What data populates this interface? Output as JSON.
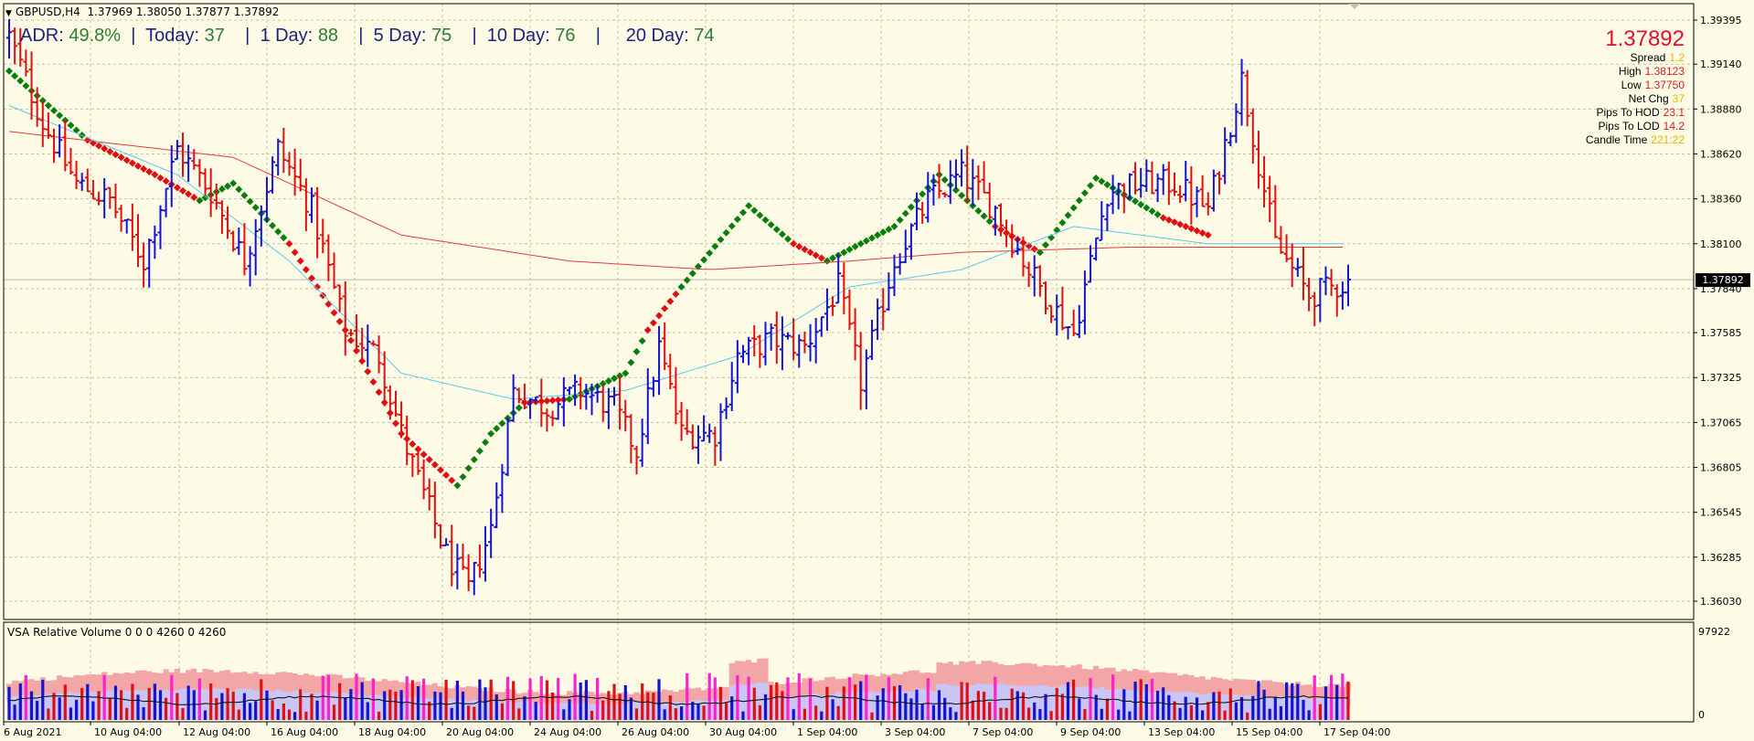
{
  "window": {
    "title_symbol": "GBPUSD,H4",
    "title_ohlc": "1.37969 1.38050 1.37877 1.37892",
    "collapse_icon": "triangle-down-icon"
  },
  "adr": {
    "adr_label": "ADR:",
    "adr_value": "49.8%",
    "today_label": "Today:",
    "today_value": "37",
    "day1_label": "1 Day:",
    "day1_value": "88",
    "day5_label": "5 Day:",
    "day5_value": "75",
    "day10_label": "10 Day:",
    "day10_value": "76",
    "day20_label": "20 Day:",
    "day20_value": "74"
  },
  "info_panel": {
    "price": "1.37892",
    "spread_label": "Spread",
    "spread_value": "1.2",
    "high_label": "High",
    "high_value": "1.38123",
    "low_label": "Low",
    "low_value": "1.37750",
    "netchg_label": "Net Chg",
    "netchg_value": "37",
    "pips_hod_label": "Pips To HOD",
    "pips_hod_value": "23.1",
    "pips_lod_label": "Pips To LOD",
    "pips_lod_value": "14.2",
    "candle_time_label": "Candle Time",
    "candle_time_value": "221:22"
  },
  "current_price_tag": "1.37892",
  "vsa_label": "VSA Relative Volume 0 0 0 4260 0 4260",
  "volume_scale": {
    "max": "97922",
    "min": "0"
  },
  "colors": {
    "background": "#fdfbe6",
    "bull": "#1414d0",
    "bear": "#e01010",
    "trend_up": "#0a7d0a",
    "trend_down": "#e01010",
    "ma_fast": "#5ec8ee",
    "ma_slow": "#e23c3c",
    "volume_band_outer": "#f3a6a6",
    "volume_band_inner": "#c9c6f5",
    "volume_climax": "#ff22cc"
  },
  "chart_data": {
    "type": "candlestick",
    "symbol": "GBPUSD",
    "timeframe": "H4",
    "y_ticks": [
      "1.39395",
      "1.39140",
      "1.38880",
      "1.38620",
      "1.38360",
      "1.38100",
      "1.37840",
      "1.37585",
      "1.37325",
      "1.37065",
      "1.36805",
      "1.36545",
      "1.36285",
      "1.36030"
    ],
    "ylim": [
      1.359,
      1.395
    ],
    "x_ticks": [
      "6 Aug 2021",
      "10 Aug 04:00",
      "12 Aug 04:00",
      "16 Aug 04:00",
      "18 Aug 04:00",
      "20 Aug 04:00",
      "24 Aug 04:00",
      "26 Aug 04:00",
      "30 Aug 04:00",
      "1 Sep 04:00",
      "3 Sep 04:00",
      "7 Sep 04:00",
      "9 Sep 04:00",
      "13 Sep 04:00",
      "15 Sep 04:00",
      "17 Sep 04:00"
    ],
    "bar_count": 240,
    "close_anchors": [
      [
        0,
        1.393
      ],
      [
        6,
        1.388
      ],
      [
        12,
        1.3845
      ],
      [
        18,
        1.3835
      ],
      [
        24,
        1.38
      ],
      [
        30,
        1.3865
      ],
      [
        36,
        1.384
      ],
      [
        42,
        1.38
      ],
      [
        48,
        1.3865
      ],
      [
        54,
        1.383
      ],
      [
        60,
        1.376
      ],
      [
        66,
        1.3745
      ],
      [
        70,
        1.37
      ],
      [
        74,
        1.3665
      ],
      [
        78,
        1.363
      ],
      [
        82,
        1.361
      ],
      [
        86,
        1.3645
      ],
      [
        90,
        1.3725
      ],
      [
        96,
        1.3715
      ],
      [
        102,
        1.3725
      ],
      [
        108,
        1.3715
      ],
      [
        112,
        1.369
      ],
      [
        116,
        1.375
      ],
      [
        120,
        1.37
      ],
      [
        126,
        1.37
      ],
      [
        130,
        1.3745
      ],
      [
        136,
        1.3755
      ],
      [
        142,
        1.375
      ],
      [
        148,
        1.3785
      ],
      [
        152,
        1.373
      ],
      [
        158,
        1.38
      ],
      [
        164,
        1.3835
      ],
      [
        170,
        1.385
      ],
      [
        176,
        1.383
      ],
      [
        182,
        1.3795
      ],
      [
        186,
        1.3775
      ],
      [
        190,
        1.3758
      ],
      [
        196,
        1.384
      ],
      [
        202,
        1.3845
      ],
      [
        208,
        1.3845
      ],
      [
        214,
        1.383
      ],
      [
        220,
        1.3905
      ],
      [
        226,
        1.381
      ],
      [
        232,
        1.378
      ],
      [
        240,
        1.3789
      ]
    ],
    "trend_line_anchors": [
      [
        0,
        1.391,
        "up"
      ],
      [
        14,
        1.387,
        "down"
      ],
      [
        26,
        1.385,
        "down"
      ],
      [
        34,
        1.3835,
        "up"
      ],
      [
        40,
        1.3845,
        "up"
      ],
      [
        50,
        1.381,
        "down"
      ],
      [
        60,
        1.376,
        "down"
      ],
      [
        70,
        1.37,
        "down"
      ],
      [
        80,
        1.367,
        "up"
      ],
      [
        86,
        1.37,
        "up"
      ],
      [
        92,
        1.3718,
        "down"
      ],
      [
        100,
        1.372,
        "up"
      ],
      [
        110,
        1.3735,
        "up"
      ],
      [
        114,
        1.376,
        "down"
      ],
      [
        120,
        1.3785,
        "up"
      ],
      [
        132,
        1.3832,
        "up"
      ],
      [
        140,
        1.381,
        "down"
      ],
      [
        146,
        1.38,
        "up"
      ],
      [
        158,
        1.382,
        "up"
      ],
      [
        166,
        1.385,
        "up"
      ],
      [
        176,
        1.382,
        "down"
      ],
      [
        184,
        1.3805,
        "up"
      ],
      [
        194,
        1.3848,
        "up"
      ],
      [
        206,
        1.3825,
        "down"
      ],
      [
        214,
        1.3815,
        "down"
      ]
    ],
    "ma_fast_anchors": [
      [
        0,
        1.389
      ],
      [
        30,
        1.385
      ],
      [
        50,
        1.38
      ],
      [
        70,
        1.3735
      ],
      [
        90,
        1.372
      ],
      [
        110,
        1.3725
      ],
      [
        130,
        1.3745
      ],
      [
        150,
        1.3785
      ],
      [
        170,
        1.3795
      ],
      [
        190,
        1.382
      ],
      [
        214,
        1.381
      ]
    ],
    "ma_slow_anchors": [
      [
        0,
        1.3875
      ],
      [
        40,
        1.386
      ],
      [
        70,
        1.3815
      ],
      [
        100,
        1.38
      ],
      [
        125,
        1.3795
      ],
      [
        150,
        1.38
      ],
      [
        170,
        1.3805
      ],
      [
        200,
        1.3808
      ],
      [
        214,
        1.3808
      ]
    ],
    "volume_ylim": [
      0,
      97922
    ]
  }
}
